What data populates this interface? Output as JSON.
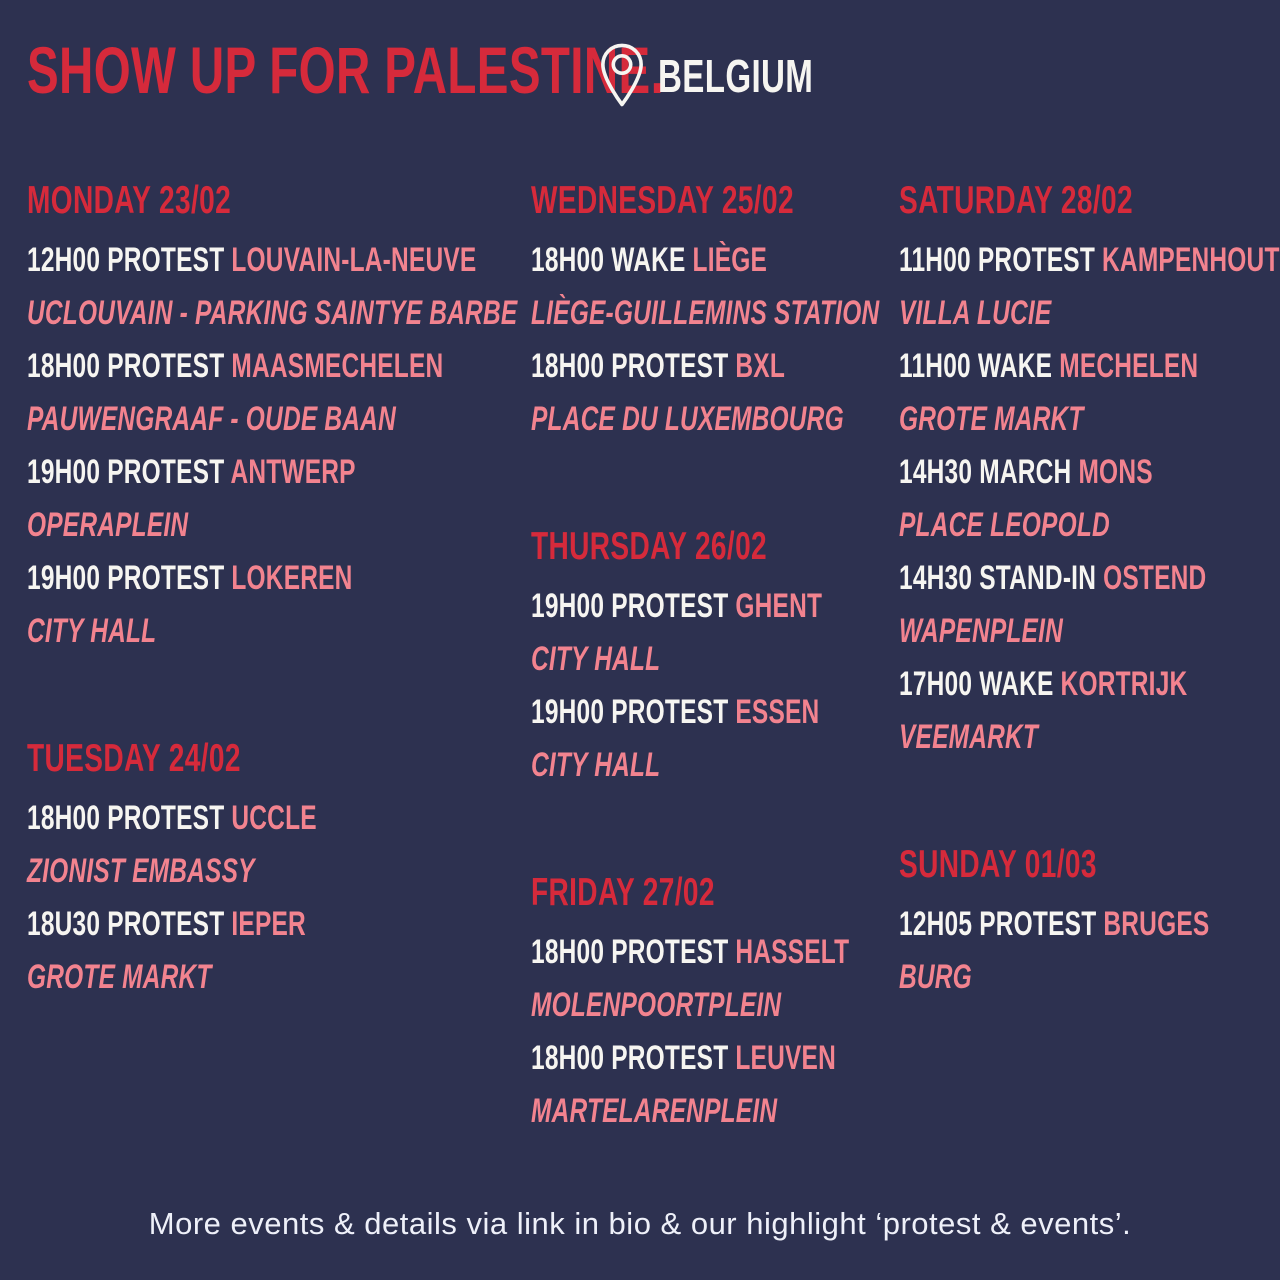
{
  "header": {
    "title": "SHOW UP FOR PALESTINE.",
    "location": "BELGIUM",
    "location_icon": "location-pin"
  },
  "footer": {
    "note": "More events & details via link in bio & our highlight ‘protest & events’."
  },
  "colors": {
    "background": "#2d3150",
    "red": "#d62a3b",
    "pink": "#f2838f",
    "white": "#f6f5f1"
  },
  "columns": [
    {
      "sections": [
        {
          "day": "MONDAY 23/02",
          "events": [
            {
              "label": "12H00 PROTEST",
              "city": "LOUVAIN-LA-NEUVE",
              "venue": "UCLOUVAIN - PARKING SAINTYE BARBE"
            },
            {
              "label": "18H00 PROTEST",
              "city": "MAASMECHELEN",
              "venue": "PAUWENGRAAF - OUDE BAAN"
            },
            {
              "label": "19H00 PROTEST",
              "city": "ANTWERP",
              "venue": "OPERAPLEIN"
            },
            {
              "label": "19H00 PROTEST",
              "city": "LOKEREN",
              "venue": "CITY HALL"
            }
          ]
        },
        {
          "day": "TUESDAY 24/02",
          "events": [
            {
              "label": "18H00 PROTEST",
              "city": "UCCLE",
              "venue": "ZIONIST EMBASSY"
            },
            {
              "label": "18U30 PROTEST",
              "city": "IEPER",
              "venue": "GROTE MARKT"
            }
          ]
        }
      ]
    },
    {
      "sections": [
        {
          "day": "WEDNESDAY 25/02",
          "events": [
            {
              "label": "18H00 WAKE",
              "city": "LIÈGE",
              "venue": "LIÈGE-GUILLEMINS STATION"
            },
            {
              "label": "18H00 PROTEST",
              "city": "BXL",
              "venue": "PLACE DU LUXEMBOURG"
            }
          ]
        },
        {
          "day": "THURSDAY 26/02",
          "events": [
            {
              "label": "19H00 PROTEST",
              "city": "GHENT",
              "venue": "CITY HALL"
            },
            {
              "label": "19H00 PROTEST",
              "city": "ESSEN",
              "venue": "CITY HALL"
            }
          ]
        },
        {
          "day": "FRIDAY 27/02",
          "events": [
            {
              "label": "18H00 PROTEST",
              "city": "HASSELT",
              "venue": "MOLENPOORTPLEIN"
            },
            {
              "label": "18H00 PROTEST",
              "city": "LEUVEN",
              "venue": "MARTELARENPLEIN"
            }
          ]
        }
      ]
    },
    {
      "sections": [
        {
          "day": "SATURDAY 28/02",
          "events": [
            {
              "label": "11H00 PROTEST",
              "city": "KAMPENHOUT",
              "venue": "VILLA LUCIE"
            },
            {
              "label": "11H00 WAKE",
              "city": "MECHELEN",
              "venue": "GROTE MARKT"
            },
            {
              "label": "14H30 MARCH",
              "city": "MONS",
              "venue": "PLACE LEOPOLD"
            },
            {
              "label": "14H30 STAND-IN",
              "city": "OSTEND",
              "venue": "WAPENPLEIN"
            },
            {
              "label": "17H00 WAKE",
              "city": "KORTRIJK",
              "venue": "VEEMARKT"
            }
          ]
        },
        {
          "day": "SUNDAY 01/03",
          "events": [
            {
              "label": "12H05 PROTEST",
              "city": "BRUGES",
              "venue": "BURG"
            }
          ]
        }
      ]
    }
  ]
}
